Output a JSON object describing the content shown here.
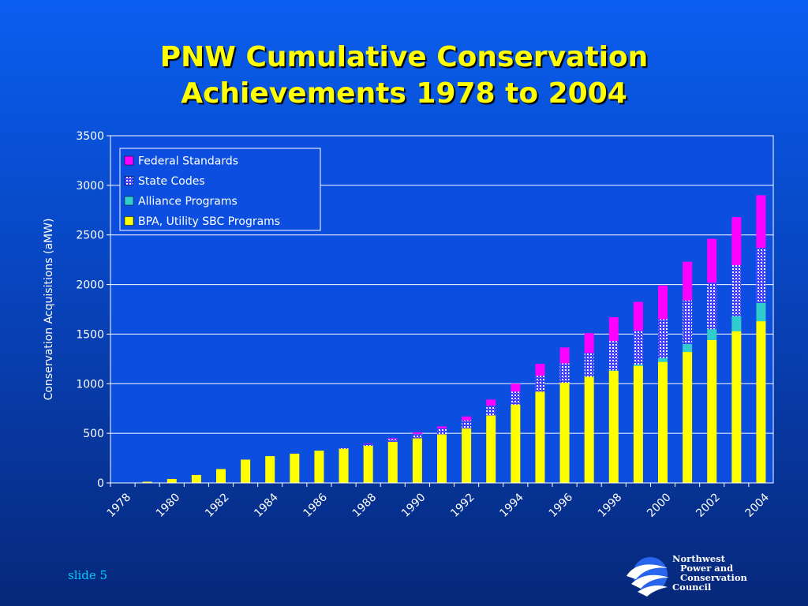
{
  "title": {
    "line1": "PNW Cumulative Conservation",
    "line2": "Achievements 1978 to 2004"
  },
  "chart_data": {
    "type": "bar",
    "stacked": true,
    "title": "PNW Cumulative Conservation Achievements 1978 to 2004",
    "ylabel": "Conservation Acquisitions (aMW)",
    "xlabel": "",
    "ylim": [
      0,
      3500
    ],
    "yticks": [
      "0",
      "500",
      "1000",
      "1500",
      "2000",
      "2500",
      "3000",
      "3500"
    ],
    "grid": true,
    "legend_position": "top-left",
    "x_tick_labels": [
      "1978",
      "1980",
      "1982",
      "1984",
      "1986",
      "1988",
      "1990",
      "1992",
      "1994",
      "1996",
      "1998",
      "2000",
      "2002",
      "2004"
    ],
    "categories": [
      "1978",
      "1979",
      "1980",
      "1981",
      "1982",
      "1983",
      "1984",
      "1985",
      "1986",
      "1987",
      "1988",
      "1989",
      "1990",
      "1991",
      "1992",
      "1993",
      "1994",
      "1995",
      "1996",
      "1997",
      "1998",
      "1999",
      "2000",
      "2001",
      "2002",
      "2003",
      "2004"
    ],
    "series": [
      {
        "name": "BPA, Utility SBC Programs",
        "color": "#ffff00",
        "pattern": "solid",
        "values": [
          0,
          12,
          40,
          80,
          140,
          235,
          270,
          295,
          325,
          345,
          375,
          415,
          450,
          490,
          550,
          680,
          790,
          920,
          1010,
          1070,
          1130,
          1180,
          1220,
          1320,
          1440,
          1530,
          1630
        ]
      },
      {
        "name": "Alliance Programs",
        "color": "#33cccc",
        "pattern": "solid",
        "values": [
          0,
          0,
          0,
          0,
          0,
          0,
          0,
          0,
          0,
          0,
          0,
          0,
          0,
          0,
          0,
          0,
          0,
          0,
          0,
          0,
          5,
          15,
          40,
          80,
          110,
          150,
          185
        ]
      },
      {
        "name": "State Codes",
        "color": "#3333ff",
        "pattern": "dotted",
        "values": [
          0,
          0,
          0,
          0,
          0,
          0,
          0,
          0,
          0,
          10,
          15,
          25,
          45,
          60,
          80,
          100,
          130,
          160,
          195,
          240,
          295,
          340,
          390,
          440,
          470,
          515,
          555
        ]
      },
      {
        "name": "Federal Standards",
        "color": "#ff00ff",
        "pattern": "solid",
        "values": [
          0,
          0,
          0,
          0,
          0,
          0,
          0,
          0,
          0,
          0,
          5,
          10,
          15,
          20,
          40,
          60,
          80,
          120,
          160,
          200,
          240,
          290,
          340,
          390,
          440,
          485,
          530
        ]
      }
    ],
    "legend_order": [
      "Federal Standards",
      "State Codes",
      "Alliance Programs",
      "BPA, Utility SBC Programs"
    ]
  },
  "footer": {
    "slide_label": "slide 5",
    "logo_lines": [
      "Northwest",
      "Power and",
      "Conservation",
      "Council"
    ]
  },
  "colors": {
    "title": "#ffff00",
    "plot_background": "#0c4fe0",
    "gridline": "#ffffff",
    "axis_text": "#ffffff",
    "slide_number": "#00ccff"
  }
}
